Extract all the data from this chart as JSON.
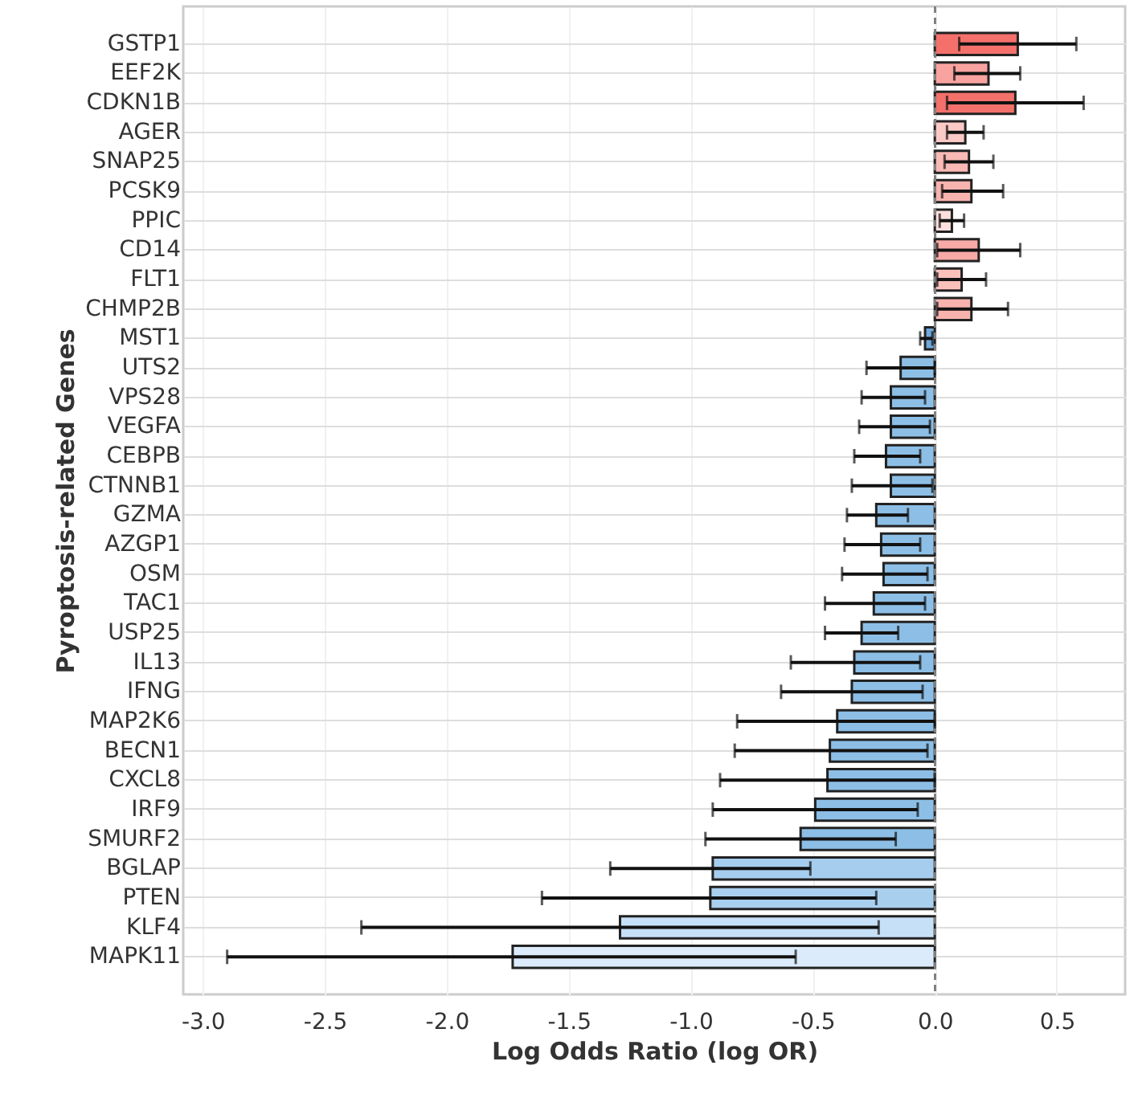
{
  "chart_data": {
    "type": "bar",
    "orientation": "horizontal",
    "xlabel": "Log Odds Ratio (log OR)",
    "ylabel": "Pyroptosis-related Genes",
    "categories": [
      "GSTP1",
      "EEF2K",
      "CDKN1B",
      "AGER",
      "SNAP25",
      "PCSK9",
      "PPIC",
      "CD14",
      "FLT1",
      "CHMP2B",
      "MST1",
      "UTS2",
      "VPS28",
      "VEGFA",
      "CEBPB",
      "CTNNB1",
      "GZMA",
      "AZGP1",
      "OSM",
      "TAC1",
      "USP25",
      "IL13",
      "IFNG",
      "MAP2K6",
      "BECN1",
      "CXCL8",
      "IRF9",
      "SMURF2",
      "BGLAP",
      "PTEN",
      "KLF4",
      "MAPK11"
    ],
    "values": [
      0.34,
      0.22,
      0.33,
      0.125,
      0.14,
      0.15,
      0.07,
      0.18,
      0.11,
      0.15,
      -0.04,
      -0.14,
      -0.18,
      -0.18,
      -0.2,
      -0.18,
      -0.24,
      -0.22,
      -0.21,
      -0.25,
      -0.3,
      -0.33,
      -0.34,
      -0.4,
      -0.43,
      -0.44,
      -0.49,
      -0.55,
      -0.91,
      -0.92,
      -1.29,
      -1.73
    ],
    "errors": [
      [
        0.1,
        0.58
      ],
      [
        0.08,
        0.35
      ],
      [
        0.05,
        0.61
      ],
      [
        0.05,
        0.2
      ],
      [
        0.04,
        0.24
      ],
      [
        0.03,
        0.28
      ],
      [
        0.02,
        0.12
      ],
      [
        0.01,
        0.35
      ],
      [
        0.01,
        0.21
      ],
      [
        0.01,
        0.3
      ],
      [
        -0.06,
        -0.01
      ],
      [
        -0.28,
        0.0
      ],
      [
        -0.3,
        -0.04
      ],
      [
        -0.31,
        -0.02
      ],
      [
        -0.33,
        -0.06
      ],
      [
        -0.34,
        -0.01
      ],
      [
        -0.36,
        -0.11
      ],
      [
        -0.37,
        -0.06
      ],
      [
        -0.38,
        -0.03
      ],
      [
        -0.45,
        -0.04
      ],
      [
        -0.45,
        -0.15
      ],
      [
        -0.59,
        -0.06
      ],
      [
        -0.63,
        -0.05
      ],
      [
        -0.81,
        0.0
      ],
      [
        -0.82,
        -0.03
      ],
      [
        -0.88,
        0.0
      ],
      [
        -0.91,
        -0.07
      ],
      [
        -0.94,
        -0.16
      ],
      [
        -1.33,
        -0.51
      ],
      [
        -1.61,
        -0.24
      ],
      [
        -2.35,
        -0.23
      ],
      [
        -2.9,
        -0.57
      ]
    ],
    "colors": [
      "#f4706b",
      "#f9a3a0",
      "#f4706b",
      "#fbc9c6",
      "#f9b9b5",
      "#f9b3ae",
      "#fde0dd",
      "#f8aaa6",
      "#fac0bc",
      "#f9b3ae",
      "#6fa8dc",
      "#8dbfe6",
      "#8dbfe6",
      "#8dbfe6",
      "#8dbfe6",
      "#8dbfe6",
      "#8dbfe6",
      "#8dbfe6",
      "#8dbfe6",
      "#8dbfe6",
      "#8dbfe6",
      "#8dbfe6",
      "#8dbfe6",
      "#8dbfe6",
      "#8dbfe6",
      "#8dbfe6",
      "#8dbfe6",
      "#8dbfe6",
      "#a6cdee",
      "#a9cfee",
      "#c6e0f7",
      "#dcebfb"
    ],
    "xlim": [
      -3.08,
      0.78
    ],
    "xticks": [
      {
        "value": -3,
        "label": "-3.0"
      },
      {
        "value": -2.5,
        "label": "-2.5"
      },
      {
        "value": -2,
        "label": "-2.0"
      },
      {
        "value": -1.5,
        "label": "-1.5"
      },
      {
        "value": -1,
        "label": "-1.0"
      },
      {
        "value": -0.5,
        "label": "-0.5"
      },
      {
        "value": 0,
        "label": "0.0"
      },
      {
        "value": 0.5,
        "label": "0.5"
      }
    ],
    "ref_lines": [
      {
        "axis": "x",
        "value": 0,
        "color": "#808080",
        "line_style": "dashed"
      }
    ],
    "grid": true
  }
}
